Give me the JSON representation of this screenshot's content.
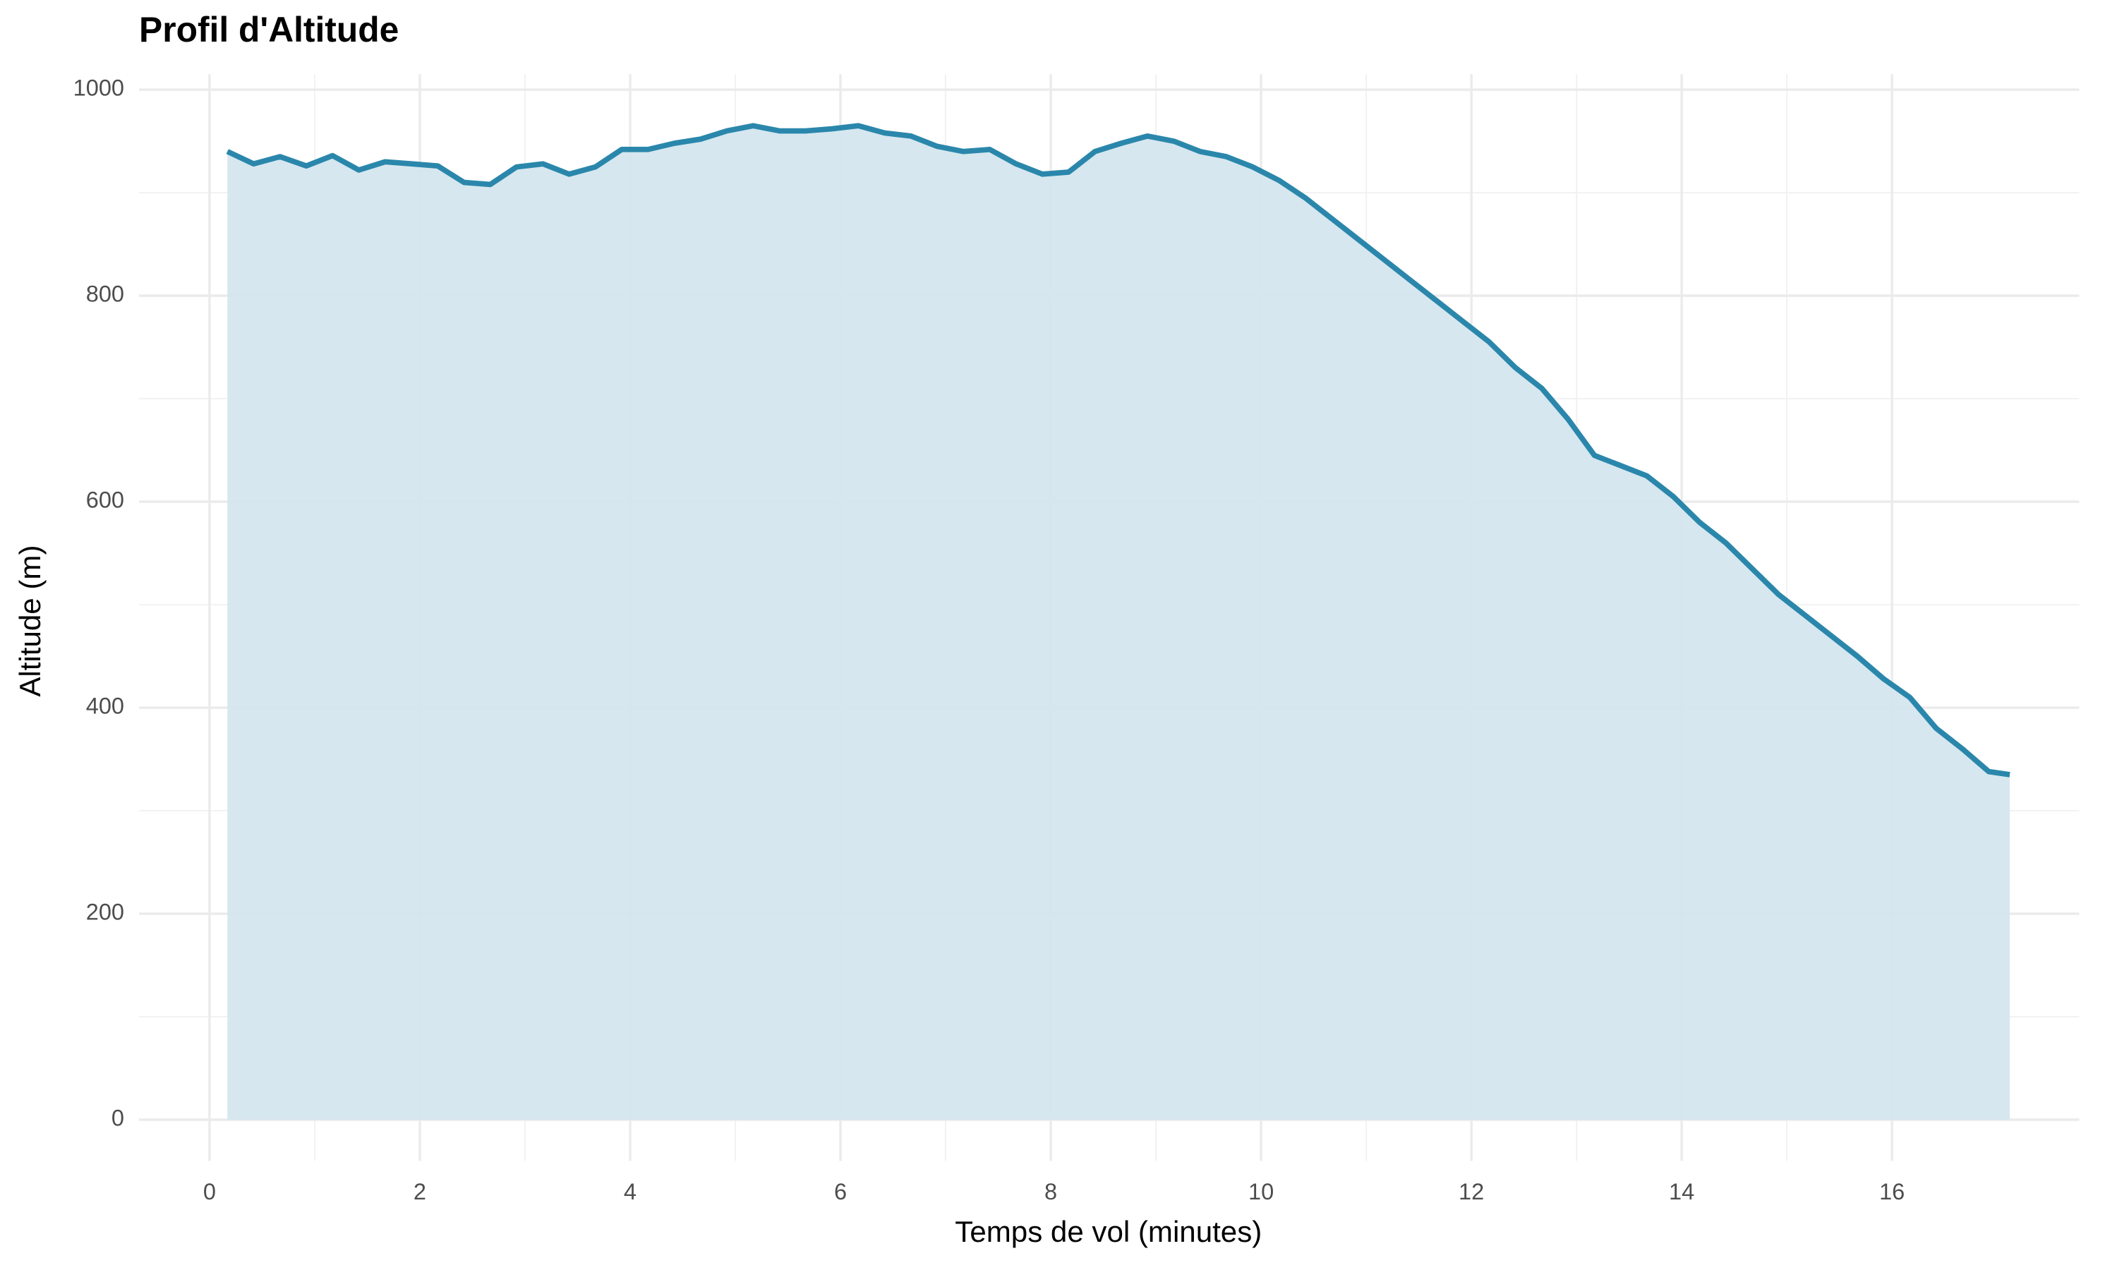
{
  "chart_data": {
    "type": "area",
    "title": "Profil d'Altitude",
    "x_label": "Temps de vol (minutes)",
    "y_label": "Altitude (m)",
    "x": [
      0.17,
      0.42,
      0.67,
      0.92,
      1.17,
      1.42,
      1.67,
      1.92,
      2.17,
      2.42,
      2.67,
      2.92,
      3.17,
      3.42,
      3.67,
      3.92,
      4.17,
      4.42,
      4.67,
      4.92,
      5.17,
      5.42,
      5.67,
      5.92,
      6.17,
      6.42,
      6.67,
      6.92,
      7.17,
      7.42,
      7.67,
      7.92,
      8.17,
      8.42,
      8.67,
      8.92,
      9.17,
      9.42,
      9.67,
      9.92,
      10.17,
      10.42,
      10.67,
      10.92,
      11.17,
      11.42,
      11.67,
      11.92,
      12.17,
      12.42,
      12.67,
      12.92,
      13.17,
      13.42,
      13.67,
      13.92,
      14.17,
      14.42,
      14.67,
      14.92,
      15.17,
      15.42,
      15.67,
      15.92,
      16.17,
      16.42,
      16.67,
      16.92,
      17.12
    ],
    "series": [
      {
        "name": "Altitude",
        "color": "#2a87ab",
        "fill": "#d4e6ee",
        "values": [
          940,
          928,
          935,
          926,
          936,
          922,
          930,
          928,
          926,
          910,
          908,
          925,
          928,
          918,
          925,
          942,
          942,
          948,
          952,
          960,
          965,
          960,
          960,
          962,
          965,
          958,
          955,
          945,
          940,
          942,
          928,
          918,
          920,
          940,
          948,
          955,
          950,
          940,
          935,
          925,
          912,
          895,
          875,
          855,
          835,
          815,
          795,
          775,
          755,
          730,
          710,
          680,
          645,
          635,
          625,
          605,
          580,
          560,
          535,
          510,
          490,
          470,
          450,
          428,
          410,
          380,
          360,
          338,
          335
        ]
      }
    ],
    "xlim": [
      -0.67,
      17.78
    ],
    "ylim": [
      -40,
      1015
    ],
    "xticks": [
      0,
      2,
      4,
      6,
      8,
      10,
      12,
      14,
      16
    ],
    "yticks": [
      0,
      200,
      400,
      600,
      800,
      1000
    ],
    "grid": true,
    "minor_grid": true
  }
}
